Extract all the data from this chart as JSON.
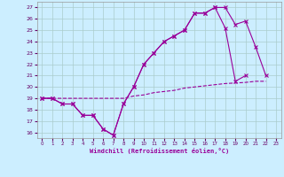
{
  "bg_color": "#cceeff",
  "line_color": "#990099",
  "grid_color": "#aacccc",
  "xlabel": "Windchill (Refroidissement éolien,°C)",
  "xlim_min": -0.5,
  "xlim_max": 23.5,
  "ylim_min": 15.5,
  "ylim_max": 27.5,
  "xticks": [
    0,
    1,
    2,
    3,
    4,
    5,
    6,
    7,
    8,
    9,
    10,
    11,
    12,
    13,
    14,
    15,
    16,
    17,
    18,
    19,
    20,
    21,
    22,
    23
  ],
  "yticks": [
    16,
    17,
    18,
    19,
    20,
    21,
    22,
    23,
    24,
    25,
    26,
    27
  ],
  "curve1_x": [
    0,
    1,
    2,
    3,
    4,
    5,
    6,
    7,
    8,
    9,
    10,
    11,
    12,
    13,
    14,
    15,
    16,
    17,
    18,
    19,
    20,
    21,
    22
  ],
  "curve1_y": [
    19.0,
    19.0,
    18.5,
    18.5,
    17.5,
    17.5,
    16.3,
    15.75,
    18.5,
    20.0,
    22.0,
    23.0,
    24.0,
    24.5,
    25.0,
    26.5,
    26.5,
    27.0,
    27.0,
    25.5,
    25.8,
    23.5,
    21.0
  ],
  "curve2_x": [
    0,
    1,
    2,
    3,
    4,
    5,
    6,
    7,
    8,
    9,
    10,
    11,
    12,
    13,
    14,
    15,
    16,
    17,
    18,
    19,
    20
  ],
  "curve2_y": [
    19.0,
    19.0,
    18.5,
    18.5,
    17.5,
    17.5,
    16.3,
    15.75,
    18.5,
    20.0,
    22.0,
    23.0,
    24.0,
    24.5,
    25.0,
    26.5,
    26.5,
    27.0,
    25.2,
    20.5,
    21.0
  ],
  "curve3_x": [
    0,
    1,
    2,
    3,
    4,
    5,
    6,
    7,
    8,
    9,
    10,
    11,
    12,
    13,
    14,
    15,
    16,
    17,
    18,
    19,
    20,
    21,
    22
  ],
  "curve3_y": [
    19.0,
    19.0,
    19.0,
    19.0,
    19.0,
    19.0,
    19.0,
    19.0,
    19.0,
    19.2,
    19.3,
    19.5,
    19.6,
    19.7,
    19.9,
    20.0,
    20.1,
    20.2,
    20.3,
    20.35,
    20.4,
    20.5,
    20.5
  ]
}
